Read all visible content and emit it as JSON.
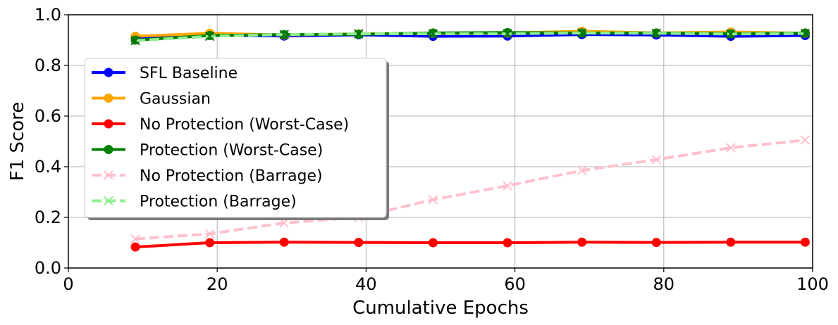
{
  "chart_data": {
    "type": "line",
    "title": "",
    "xlabel": "Cumulative Epochs",
    "ylabel": "F1 Score",
    "xlim": [
      0,
      100
    ],
    "ylim": [
      0,
      1.0
    ],
    "xticks": [
      "0",
      "20",
      "40",
      "60",
      "80",
      "100"
    ],
    "yticks": [
      "0.0",
      "0.2",
      "0.4",
      "0.6",
      "0.8",
      "1.0"
    ],
    "grid": true,
    "legend_position": "center-left",
    "x": [
      9,
      19,
      29,
      39,
      49,
      59,
      69,
      79,
      89,
      99
    ],
    "series": [
      {
        "name": "SFL Baseline",
        "color": "#0000ff",
        "marker": "circle",
        "linestyle": "solid",
        "values": [
          0.91,
          0.92,
          0.916,
          0.921,
          0.915,
          0.916,
          0.922,
          0.92,
          0.915,
          0.918
        ]
      },
      {
        "name": "Gaussian",
        "color": "#ffa500",
        "marker": "circle",
        "linestyle": "solid",
        "values": [
          0.915,
          0.927,
          0.92,
          0.925,
          0.927,
          0.928,
          0.935,
          0.928,
          0.932,
          0.927
        ]
      },
      {
        "name": "No Protection (Worst-Case)",
        "color": "#ff0000",
        "marker": "circle",
        "linestyle": "solid",
        "values": [
          0.083,
          0.1,
          0.102,
          0.101,
          0.1,
          0.1,
          0.102,
          0.101,
          0.102,
          0.102
        ]
      },
      {
        "name": "Protection (Worst-Case)",
        "color": "#008000",
        "marker": "circle",
        "linestyle": "solid",
        "values": [
          0.9,
          0.918,
          0.922,
          0.923,
          0.928,
          0.93,
          0.928,
          0.928,
          0.925,
          0.928
        ]
      },
      {
        "name": "No Protection (Barrage)",
        "color": "#ffc0cb",
        "marker": "x",
        "linestyle": "dashed",
        "values": [
          0.115,
          0.135,
          0.178,
          0.2,
          0.27,
          0.325,
          0.385,
          0.428,
          0.475,
          0.505
        ]
      },
      {
        "name": "Protection (Barrage)",
        "color": "#90ee90",
        "marker": "x",
        "linestyle": "dashed",
        "values": [
          0.898,
          0.915,
          0.922,
          0.925,
          0.925,
          0.925,
          0.928,
          0.927,
          0.924,
          0.926
        ]
      }
    ]
  }
}
